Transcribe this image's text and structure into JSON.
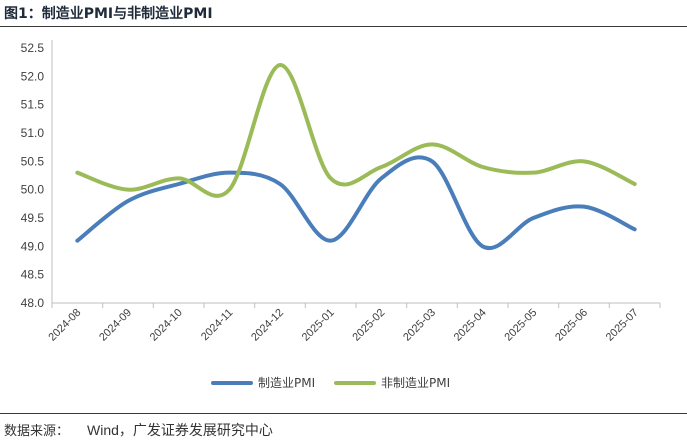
{
  "header": {
    "title": "图1：制造业PMI与非制造业PMI"
  },
  "footer": {
    "source_label": "数据来源：",
    "source_value": "Wind，广发证券发展研究中心"
  },
  "chart_data": {
    "type": "line",
    "categories": [
      "2024-08",
      "2024-09",
      "2024-10",
      "2024-11",
      "2024-12",
      "2025-01",
      "2025-02",
      "2025-03",
      "2025-04",
      "2025-05",
      "2025-06",
      "2025-07"
    ],
    "series": [
      {
        "name": "制造业PMI",
        "color": "#4a7ebb",
        "values": [
          49.1,
          49.8,
          50.1,
          50.3,
          50.1,
          49.1,
          50.2,
          50.5,
          49.0,
          49.5,
          49.7,
          49.3
        ]
      },
      {
        "name": "非制造业PMI",
        "color": "#9bbb59",
        "values": [
          50.3,
          50.0,
          50.2,
          50.0,
          52.2,
          50.2,
          50.4,
          50.8,
          50.4,
          50.3,
          50.5,
          50.1
        ]
      }
    ],
    "yticks": [
      "48.0",
      "48.5",
      "49.0",
      "49.5",
      "50.0",
      "50.5",
      "51.0",
      "51.5",
      "52.0",
      "52.5"
    ],
    "ylim": [
      48.0,
      52.5
    ],
    "grid": false,
    "legend_position": "bottom"
  }
}
